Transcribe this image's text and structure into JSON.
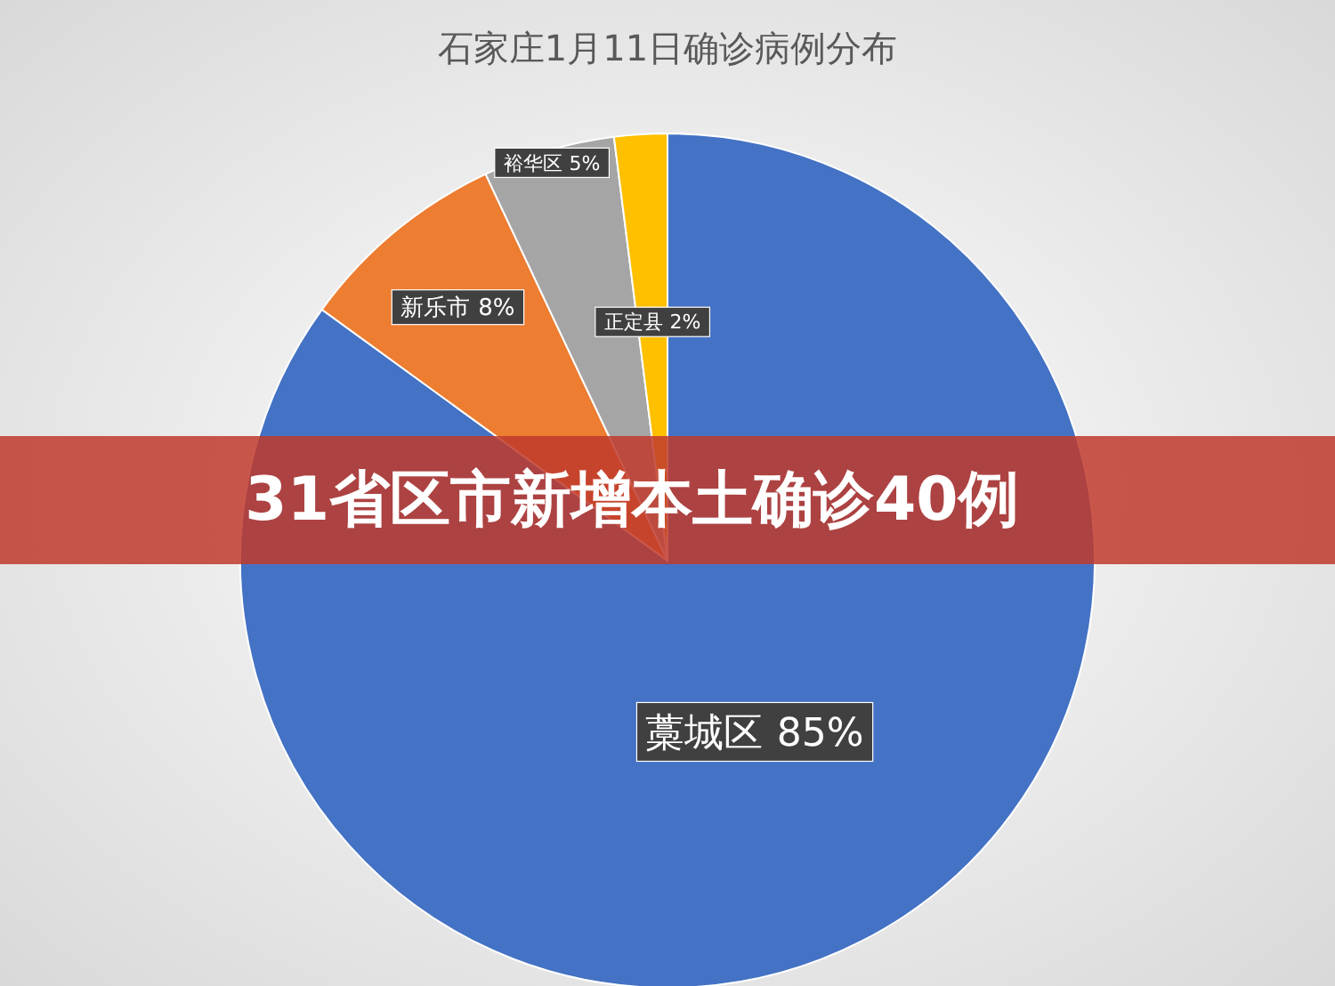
{
  "chart_data": {
    "type": "pie",
    "title": "石家庄1月11日确诊病例分布",
    "categories": [
      "藁城区",
      "新乐市",
      "裕华区",
      "正定县"
    ],
    "values": [
      85,
      8,
      5,
      2
    ],
    "colors": [
      "#4472c4",
      "#ed7d31",
      "#a5a5a5",
      "#ffc000"
    ],
    "value_labels": [
      "85%",
      "8%",
      "5%",
      "2%"
    ],
    "annotations": [
      "31省区市新增本土确诊40例"
    ]
  }
}
